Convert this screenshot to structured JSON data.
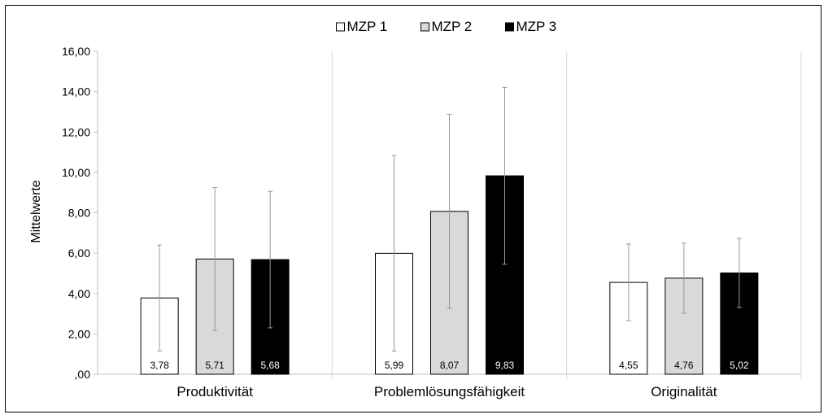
{
  "chart_data": {
    "type": "bar",
    "ylabel": "Mittelwerte",
    "xlabel": "",
    "title": "",
    "ylim": [
      0,
      16
    ],
    "yticks": [
      ",00",
      "2,00",
      "4,00",
      "6,00",
      "8,00",
      "10,00",
      "12,00",
      "14,00",
      "16,00"
    ],
    "ytick_values": [
      0,
      2,
      4,
      6,
      8,
      10,
      12,
      14,
      16
    ],
    "categories": [
      "Produktivität",
      "Problemlösungsfähigkeit",
      "Originalität"
    ],
    "legend_position": "top-center",
    "grid": false,
    "series": [
      {
        "name": "MZP 1",
        "color": "#ffffff",
        "label_color": "#000000",
        "values": [
          3.78,
          5.99,
          4.55
        ],
        "labels": [
          "3,78",
          "5,99",
          "4,55"
        ],
        "error": [
          2.62,
          4.84,
          1.9
        ]
      },
      {
        "name": "MZP 2",
        "color": "#d9d9d9",
        "label_color": "#000000",
        "values": [
          5.71,
          8.07,
          4.76
        ],
        "labels": [
          "5,71",
          "8,07",
          "4,76"
        ],
        "error": [
          3.54,
          4.81,
          1.74
        ]
      },
      {
        "name": "MZP 3",
        "color": "#000000",
        "label_color": "#ffffff",
        "values": [
          5.68,
          9.83,
          5.02
        ],
        "labels": [
          "5,68",
          "9,83",
          "5,02"
        ],
        "error": [
          3.38,
          4.38,
          1.71
        ]
      }
    ]
  }
}
